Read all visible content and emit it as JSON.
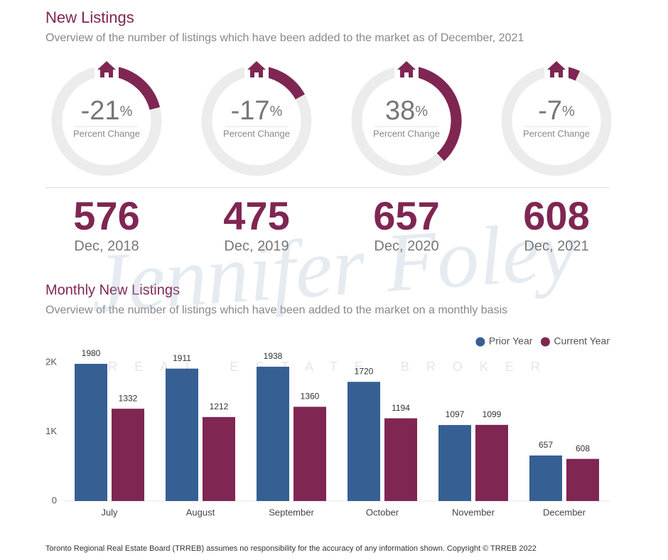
{
  "header": {
    "title": "New Listings",
    "subtitle": "Overview of the number of listings which have been added to the market as of December, 2021"
  },
  "gauges": [
    {
      "value": -21,
      "unit": "%",
      "caption": "Percent Change",
      "count": 576,
      "date": "Dec, 2018"
    },
    {
      "value": -17,
      "unit": "%",
      "caption": "Percent Change",
      "count": 475,
      "date": "Dec, 2019"
    },
    {
      "value": 38,
      "unit": "%",
      "caption": "Percent Change",
      "count": 657,
      "date": "Dec, 2020"
    },
    {
      "value": -7,
      "unit": "%",
      "caption": "Percent Change",
      "count": 608,
      "date": "Dec, 2021"
    }
  ],
  "watermark": {
    "name": "Jennifer Foley",
    "tagline": "REAL ESTATE BROKER"
  },
  "chart_data": {
    "type": "bar",
    "title": "Monthly New Listings",
    "subtitle": "Overview of the number of listings which have been added to the market on a monthly basis",
    "categories": [
      "July",
      "August",
      "September",
      "October",
      "November",
      "December"
    ],
    "series": [
      {
        "name": "Prior Year",
        "color": "#365f94",
        "values": [
          1980,
          1911,
          1938,
          1720,
          1097,
          657
        ]
      },
      {
        "name": "Current Year",
        "color": "#7f2652",
        "values": [
          1332,
          1212,
          1360,
          1194,
          1099,
          608
        ]
      }
    ],
    "ylim": [
      0,
      2000
    ],
    "yticks": [
      0,
      {
        "value": 1000,
        "label": "1K"
      },
      {
        "value": 2000,
        "label": "2K"
      }
    ],
    "grid": false,
    "legend": "top-right"
  },
  "footer": "Toronto Regional Real Estate Board (TRREB) assumes no responsibility for the accuracy of any information shown. Copyright © TRREB 2022"
}
